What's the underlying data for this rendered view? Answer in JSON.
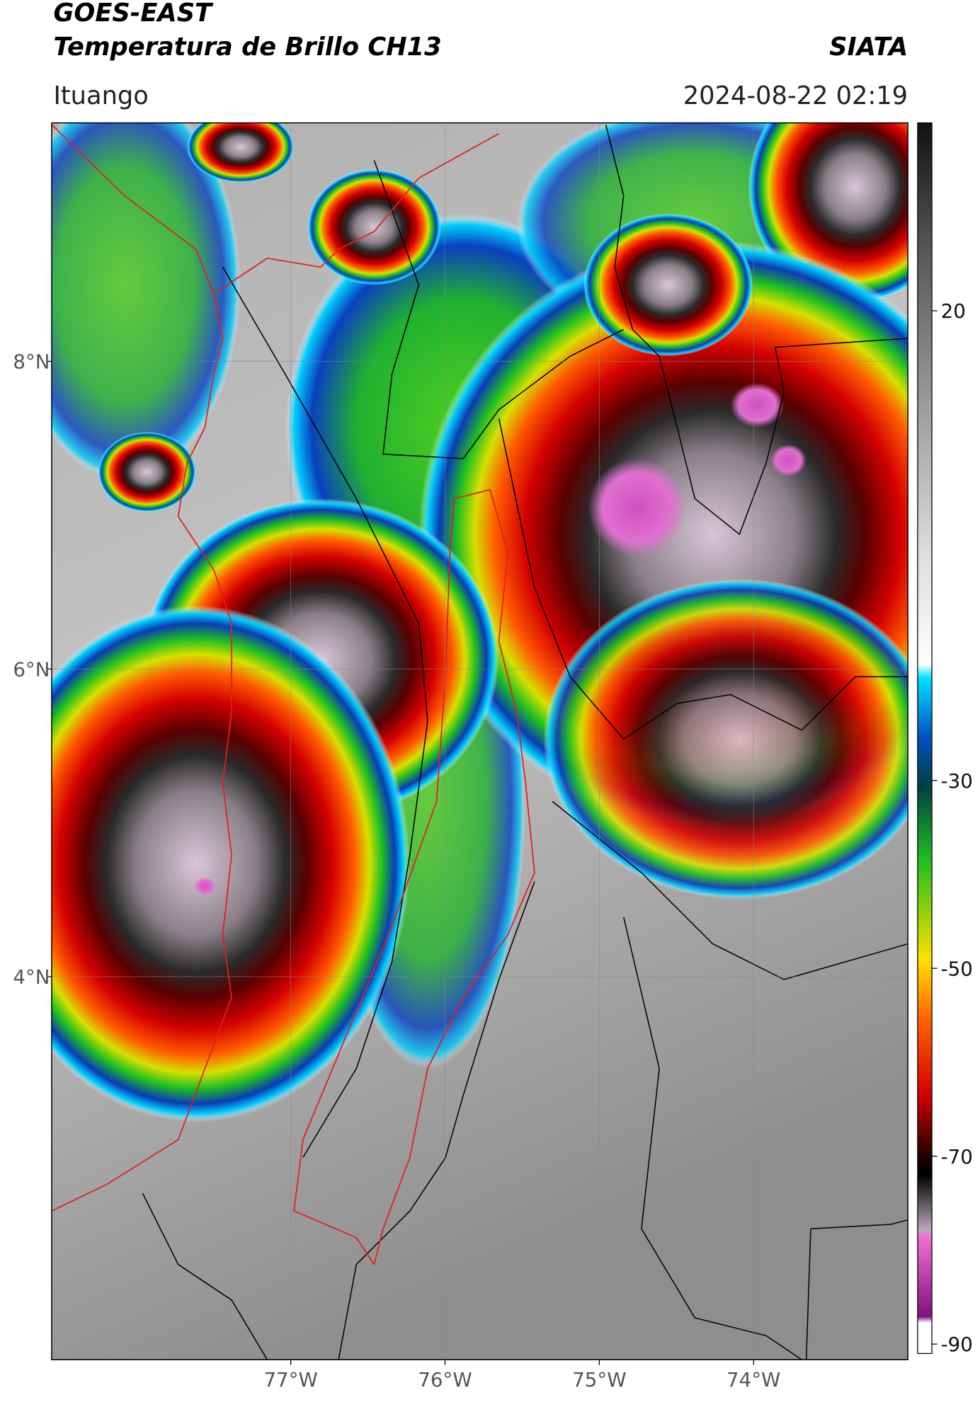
{
  "header": {
    "title": "GOES-EAST",
    "subtitle": "Temperatura de Brillo CH13",
    "brand": "SIATA",
    "location": "Ituango",
    "timestamp": "2024-08-22 02:19"
  },
  "map": {
    "xlim": [
      -78.55,
      -73.0
    ],
    "ylim": [
      1.51,
      9.55
    ],
    "xticks": [
      {
        "value": -77,
        "label": "77°W"
      },
      {
        "value": -76,
        "label": "76°W"
      },
      {
        "value": -75,
        "label": "75°W"
      },
      {
        "value": -74,
        "label": "74°W"
      }
    ],
    "yticks": [
      {
        "value": 8,
        "label": "8°N"
      },
      {
        "value": 6,
        "label": "6°N"
      },
      {
        "value": 4,
        "label": "4°N"
      }
    ],
    "grid": true
  },
  "colorbar": {
    "clim": [
      -91,
      40
    ],
    "ticks": [
      20,
      -30,
      -50,
      -70,
      -90
    ]
  }
}
